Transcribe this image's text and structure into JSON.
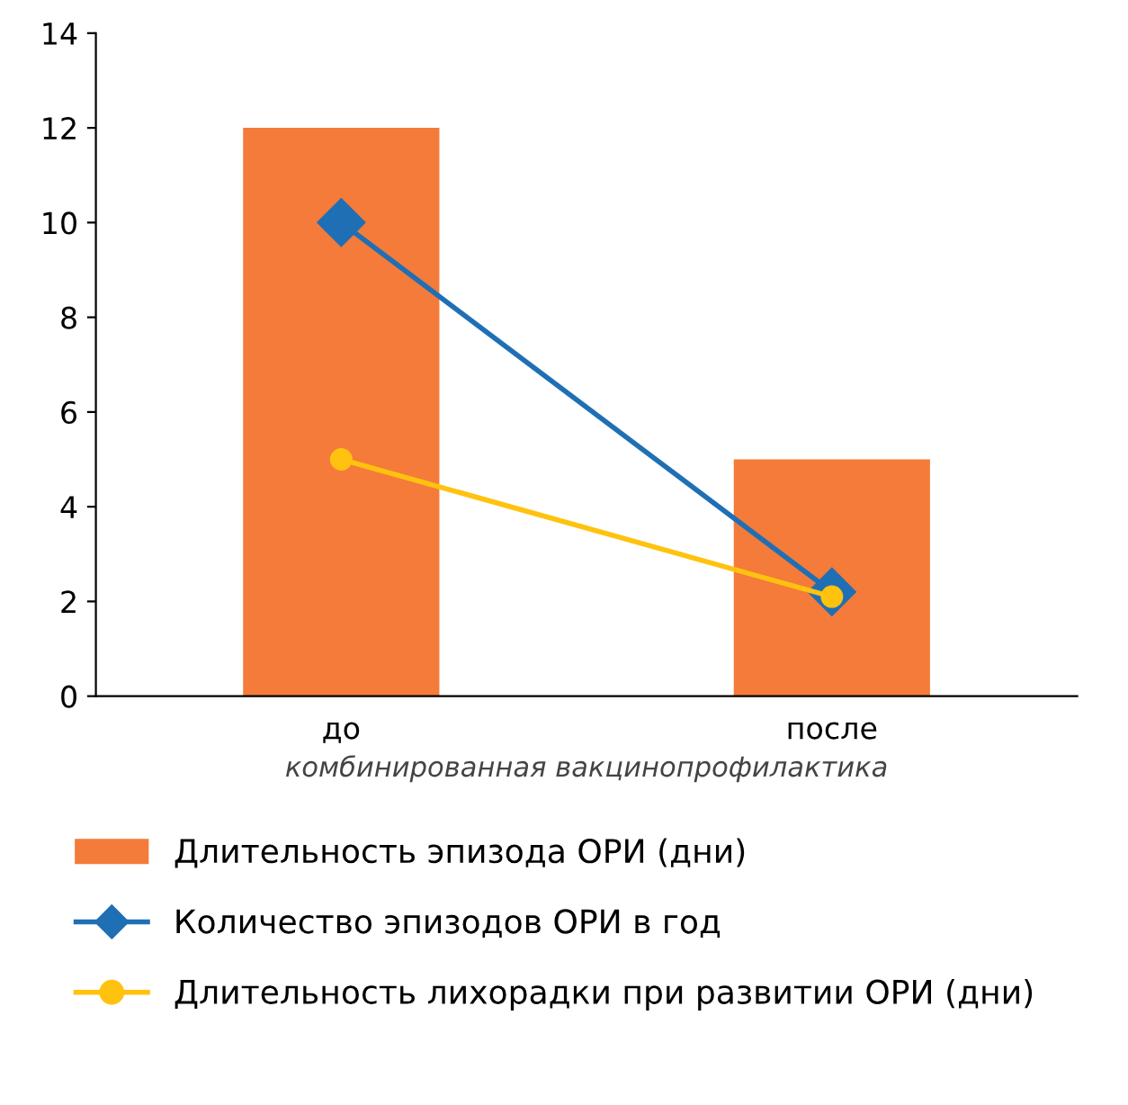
{
  "chart_data": {
    "type": "bar",
    "xlabel": "комбинированная вакцинопрофилактика",
    "categories": [
      "до",
      "после"
    ],
    "series": [
      {
        "name": "Длительность эпизода ОРИ (дни)",
        "color": "#f47b3a",
        "values": [
          12,
          5
        ]
      },
      {
        "name": "Количество эпизодов ОРИ в год",
        "type": "line",
        "marker": "diamond",
        "color": "#1f6fb5",
        "values": [
          10,
          2.2
        ]
      },
      {
        "name": "Длительность лихорадки при развитии ОРИ (дни)",
        "type": "line",
        "marker": "circle",
        "color": "#ffc20e",
        "values": [
          5,
          2.1
        ]
      }
    ],
    "ylim": [
      0,
      14
    ],
    "yticks": [
      0,
      2,
      4,
      6,
      8,
      10,
      12,
      14
    ],
    "grid": false,
    "legend": "bottom"
  }
}
